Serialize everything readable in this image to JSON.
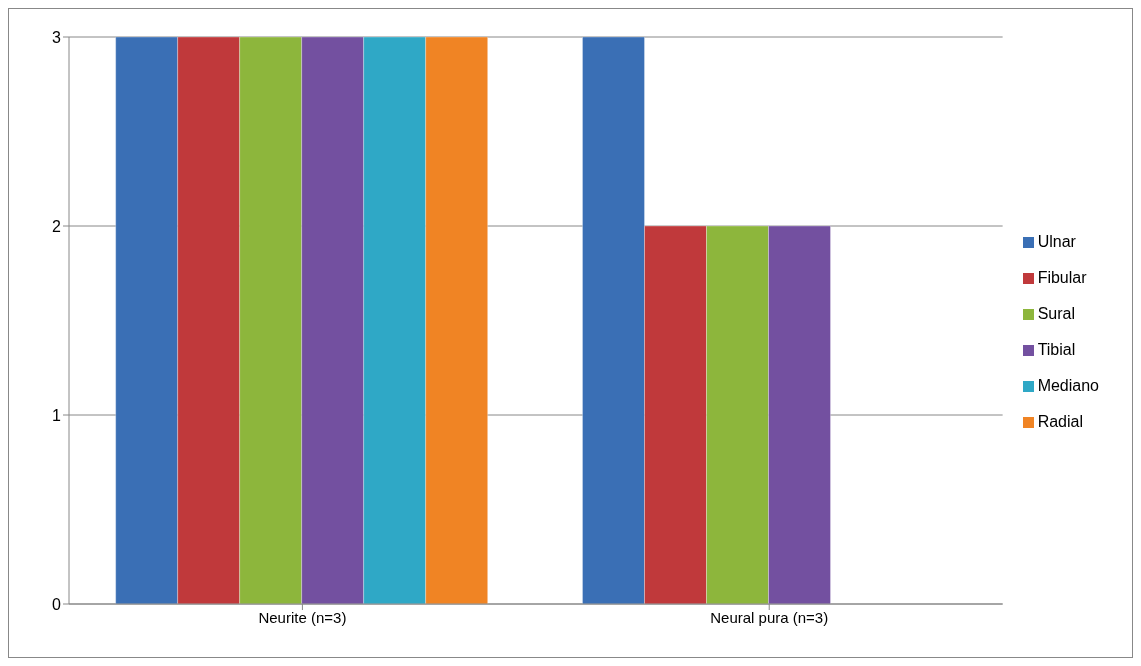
{
  "chart_data": {
    "type": "bar",
    "categories": [
      "Neurite (n=3)",
      "Neural pura (n=3)"
    ],
    "series": [
      {
        "name": "Ulnar",
        "color": "#3a6fb5",
        "values": [
          3,
          3
        ]
      },
      {
        "name": "Fibular",
        "color": "#c0393b",
        "values": [
          3,
          2
        ]
      },
      {
        "name": "Sural",
        "color": "#8db63c",
        "values": [
          3,
          2
        ]
      },
      {
        "name": "Tibial",
        "color": "#7350a0",
        "values": [
          3,
          2
        ]
      },
      {
        "name": "Mediano",
        "color": "#2fa8c6",
        "values": [
          3,
          0
        ]
      },
      {
        "name": "Radial",
        "color": "#f08424",
        "values": [
          3,
          0
        ]
      }
    ],
    "ylim": [
      0,
      3
    ],
    "yticks": [
      0,
      1,
      2,
      3
    ],
    "grid": "y",
    "legend": "right"
  }
}
